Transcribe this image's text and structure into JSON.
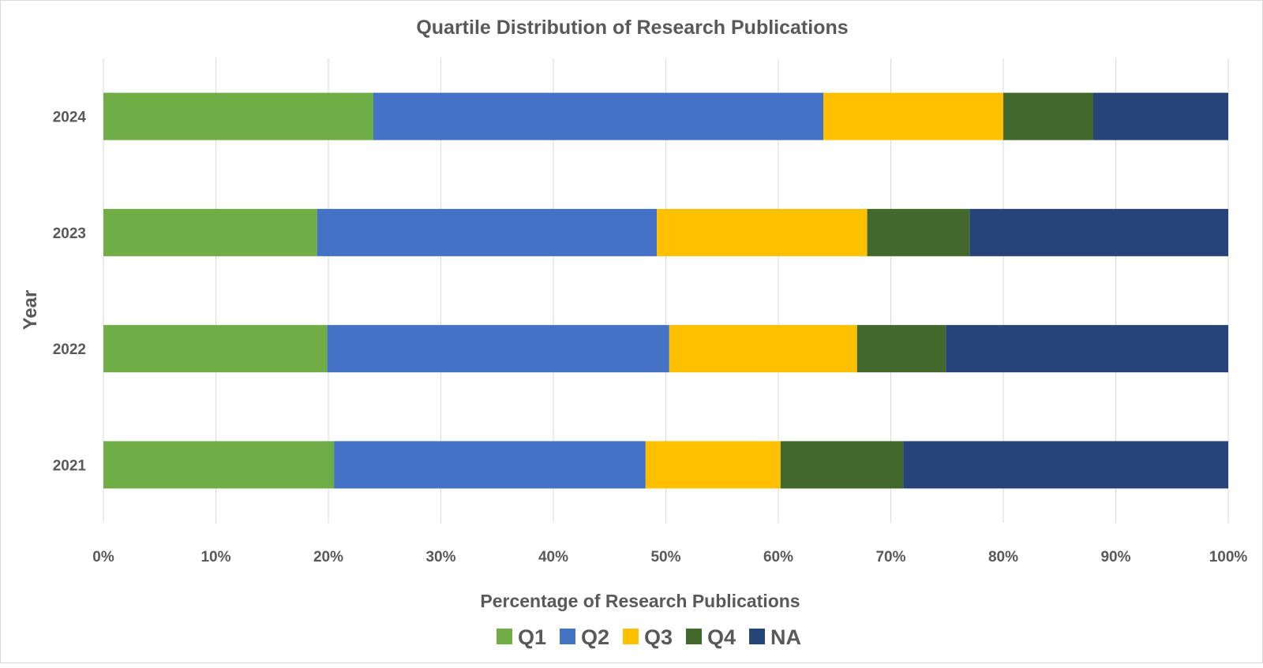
{
  "chart_data": {
    "type": "bar",
    "orientation": "horizontal",
    "stacked": "percent",
    "title": "Quartile Distribution of Research Publications",
    "xlabel": "Percentage of Research Publications",
    "ylabel": "Year",
    "xlim": [
      0,
      100
    ],
    "x_ticks": [
      "0%",
      "10%",
      "20%",
      "30%",
      "40%",
      "50%",
      "60%",
      "70%",
      "80%",
      "90%",
      "100%"
    ],
    "categories": [
      "2024",
      "2023",
      "2022",
      "2021"
    ],
    "series": [
      {
        "name": "Q1",
        "color": "#70AD47",
        "values": [
          24.0,
          19.0,
          19.9,
          20.5
        ]
      },
      {
        "name": "Q2",
        "color": "#4472C4",
        "values": [
          40.0,
          30.2,
          30.4,
          27.7
        ]
      },
      {
        "name": "Q3",
        "color": "#FFC000",
        "values": [
          16.0,
          18.7,
          16.7,
          12.0
        ]
      },
      {
        "name": "Q4",
        "color": "#43682B",
        "values": [
          8.0,
          9.1,
          7.9,
          10.9
        ]
      },
      {
        "name": "NA",
        "color": "#264478",
        "values": [
          12.0,
          23.0,
          25.1,
          28.9
        ]
      }
    ],
    "grid": true,
    "legend": "bottom"
  }
}
